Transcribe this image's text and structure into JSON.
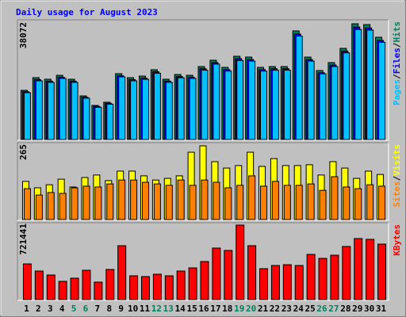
{
  "title": "Daily usage for August 2023",
  "chart_data": [
    {
      "type": "bar",
      "ylim": [
        0,
        38072
      ],
      "yticks": [
        38072
      ],
      "legend_separator": "/",
      "series": [
        {
          "name": "Pages",
          "color": "#00c0ff",
          "values": [
            15400,
            19300,
            18800,
            20100,
            18800,
            13600,
            10600,
            11600,
            20600,
            19300,
            19800,
            21800,
            18800,
            20300,
            20100,
            22800,
            24800,
            22500,
            26000,
            25800,
            22500,
            22800,
            22800,
            34000,
            25800,
            21600,
            24000,
            28500,
            36200,
            36000,
            32000
          ]
        },
        {
          "name": "Files",
          "color": "#0000ff",
          "values": [
            15700,
            19700,
            19200,
            20500,
            19200,
            13900,
            10900,
            11900,
            21000,
            19700,
            20200,
            22300,
            19200,
            20700,
            20500,
            23300,
            25300,
            23000,
            26600,
            26300,
            23000,
            23300,
            23300,
            34700,
            26300,
            22000,
            24500,
            29100,
            37000,
            36700,
            32600
          ]
        },
        {
          "name": "Hits",
          "color": "#00805c",
          "values": [
            16170,
            20340,
            19820,
            21120,
            19820,
            14340,
            11210,
            12260,
            21650,
            20340,
            20860,
            22950,
            19820,
            21380,
            21120,
            23990,
            26080,
            23730,
            27380,
            27120,
            23730,
            23990,
            23990,
            35730,
            27120,
            22690,
            25300,
            29990,
            38072,
            37810,
            33640
          ]
        }
      ]
    },
    {
      "type": "bar",
      "ylim": [
        0,
        265
      ],
      "yticks": [
        265
      ],
      "legend_separator": "/",
      "series": [
        {
          "name": "Sites",
          "color": "#ff8000",
          "values": [
            111,
            88,
            97,
            94,
            114,
            120,
            117,
            128,
            142,
            142,
            134,
            128,
            123,
            142,
            123,
            142,
            134,
            114,
            123,
            157,
            120,
            137,
            123,
            123,
            128,
            105,
            154,
            117,
            111,
            125,
            120
          ]
        },
        {
          "name": "Visits",
          "color": "#ffff00",
          "values": [
            137,
            114,
            125,
            145,
            117,
            151,
            160,
            140,
            174,
            174,
            157,
            142,
            148,
            157,
            242,
            265,
            208,
            185,
            194,
            242,
            191,
            219,
            194,
            194,
            197,
            160,
            208,
            185,
            148,
            174,
            162
          ]
        }
      ]
    },
    {
      "type": "bar",
      "ylim": [
        0,
        721441
      ],
      "yticks": [
        721441
      ],
      "categories": [
        "1",
        "2",
        "3",
        "4",
        "5",
        "6",
        "7",
        "8",
        "9",
        "10",
        "11",
        "12",
        "13",
        "14",
        "15",
        "16",
        "17",
        "18",
        "19",
        "20",
        "21",
        "22",
        "23",
        "24",
        "25",
        "26",
        "27",
        "28",
        "29",
        "30",
        "31"
      ],
      "category_colors": [
        "#000000",
        "#000000",
        "#000000",
        "#000000",
        "#00805c",
        "#00805c",
        "#000000",
        "#000000",
        "#000000",
        "#000000",
        "#000000",
        "#00805c",
        "#00805c",
        "#000000",
        "#000000",
        "#000000",
        "#000000",
        "#000000",
        "#00805c",
        "#00805c",
        "#000000",
        "#000000",
        "#000000",
        "#000000",
        "#000000",
        "#00805c",
        "#00805c",
        "#000000",
        "#000000",
        "#000000",
        "#000000"
      ],
      "series": [
        {
          "name": "KBytes",
          "color": "#ff0000",
          "values": [
            345375,
            276300,
            237925,
            176525,
            207225,
            283975,
            168850,
            291650,
            521900,
            230250,
            222575,
            245600,
            230250,
            276300,
            307000,
            368400,
            498875,
            475850,
            721441,
            521900,
            299325,
            330025,
            337700,
            330025,
            437475,
            399100,
            429800,
            514225,
            590975,
            583300,
            537250
          ]
        }
      ]
    }
  ]
}
